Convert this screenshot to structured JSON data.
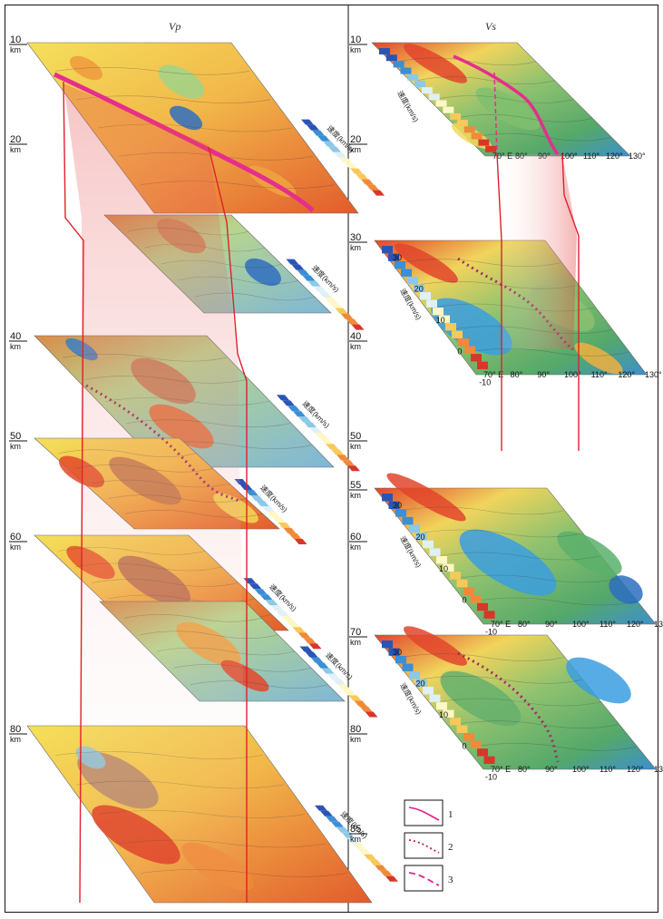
{
  "panels": {
    "vp": {
      "title": "Vp",
      "slices": [
        {
          "depth": "10",
          "unit": "km",
          "velocity_unit": "速度(km/s)"
        },
        {
          "depth": "30",
          "unit": "",
          "velocity_unit": "速度(km/s)"
        },
        {
          "depth": "40",
          "unit": "km",
          "velocity_unit": "速度(km/s)"
        },
        {
          "depth": "50",
          "unit": "km",
          "velocity_unit": "速度(km/s)"
        },
        {
          "depth": "60",
          "unit": "km",
          "velocity_unit": "速度(km/s)"
        },
        {
          "depth": "70",
          "unit": "",
          "velocity_unit": "速度(km/s)"
        },
        {
          "depth": "80",
          "unit": "km",
          "velocity_unit": "速度(km/s)"
        }
      ],
      "depth_labels": [
        {
          "text": "10",
          "unit": "km"
        },
        {
          "text": "20",
          "unit": "km"
        },
        {
          "text": "40",
          "unit": "km"
        },
        {
          "text": "50",
          "unit": "km"
        },
        {
          "text": "60",
          "unit": "km"
        },
        {
          "text": "80",
          "unit": "km"
        }
      ]
    },
    "vs": {
      "title": "Vs",
      "velocity_unit": "速度(km/s)",
      "longitudes": [
        "70° E",
        "80°",
        "90°",
        "100°",
        "110°",
        "120°",
        "130°"
      ],
      "latitudes": [
        "30",
        "20",
        "10",
        "0",
        "-10"
      ],
      "depth_labels": [
        {
          "text": "10",
          "unit": "km"
        },
        {
          "text": "20",
          "unit": "km"
        },
        {
          "text": "30",
          "unit": "km"
        },
        {
          "text": "40",
          "unit": "km"
        },
        {
          "text": "50",
          "unit": "km"
        },
        {
          "text": "55",
          "unit": "km"
        },
        {
          "text": "60",
          "unit": "km"
        },
        {
          "text": "70",
          "unit": "km"
        },
        {
          "text": "80",
          "unit": "km"
        },
        {
          "text": "85",
          "unit": "km"
        }
      ]
    }
  },
  "legend": [
    {
      "number": "1",
      "line_style": "solid",
      "color": "#e0208a"
    },
    {
      "number": "2",
      "line_style": "dotted",
      "color": "#c81e4a"
    },
    {
      "number": "3",
      "line_style": "dashed",
      "color": "#e0208a"
    }
  ],
  "colors": {
    "connector": "#e0202a",
    "boundary": "#e52e8e",
    "dotted": "#9c2e63",
    "map_yellow": "#f3df55",
    "map_orange": "#ee9d3c",
    "map_red": "#df3b26",
    "map_green": "#9ecb77",
    "map_blue": "#2d8fd6"
  }
}
